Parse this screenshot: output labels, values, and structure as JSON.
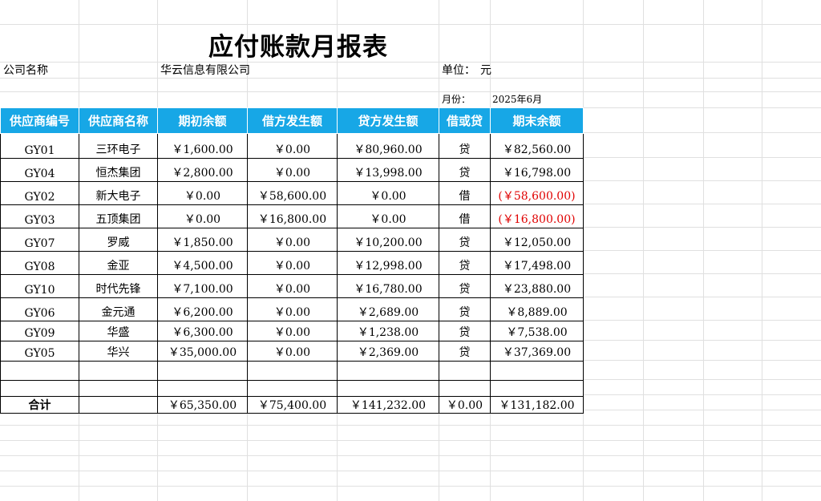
{
  "title": "应付账款月报表",
  "company": {
    "label": "公司名称",
    "value": "华云信息有限公司"
  },
  "unit": {
    "label": "单位：",
    "value": "元"
  },
  "month": {
    "label": "月份：",
    "value": "2025年6月"
  },
  "columns": [
    "供应商编号",
    "供应商名称",
    "期初余额",
    "借方发生额",
    "贷方发生额",
    "借或贷",
    "期末余额"
  ],
  "rows": [
    {
      "code": "GY01",
      "name": "三环电子",
      "opening": "￥1,600.00",
      "debit": "￥0.00",
      "credit": "￥80,960.00",
      "dc": "贷",
      "closing": "￥82,560.00",
      "negative": false
    },
    {
      "code": "GY04",
      "name": "恒杰集团",
      "opening": "￥2,800.00",
      "debit": "￥0.00",
      "credit": "￥13,998.00",
      "dc": "贷",
      "closing": "￥16,798.00",
      "negative": false
    },
    {
      "code": "GY02",
      "name": "新大电子",
      "opening": "￥0.00",
      "debit": "￥58,600.00",
      "credit": "￥0.00",
      "dc": "借",
      "closing": "(￥58,600.00)",
      "negative": true
    },
    {
      "code": "GY03",
      "name": "五顶集团",
      "opening": "￥0.00",
      "debit": "￥16,800.00",
      "credit": "￥0.00",
      "dc": "借",
      "closing": "(￥16,800.00)",
      "negative": true
    },
    {
      "code": "GY07",
      "name": "罗威",
      "opening": "￥1,850.00",
      "debit": "￥0.00",
      "credit": "￥10,200.00",
      "dc": "贷",
      "closing": "￥12,050.00",
      "negative": false
    },
    {
      "code": "GY08",
      "name": "金亚",
      "opening": "￥4,500.00",
      "debit": "￥0.00",
      "credit": "￥12,998.00",
      "dc": "贷",
      "closing": "￥17,498.00",
      "negative": false
    },
    {
      "code": "GY10",
      "name": "时代先锋",
      "opening": "￥7,100.00",
      "debit": "￥0.00",
      "credit": "￥16,780.00",
      "dc": "贷",
      "closing": "￥23,880.00",
      "negative": false
    },
    {
      "code": "GY06",
      "name": "金元通",
      "opening": "￥6,200.00",
      "debit": "￥0.00",
      "credit": "￥2,689.00",
      "dc": "贷",
      "closing": "￥8,889.00",
      "negative": false
    },
    {
      "code": "GY09",
      "name": "华盛",
      "opening": "￥6,300.00",
      "debit": "￥0.00",
      "credit": "￥1,238.00",
      "dc": "贷",
      "closing": "￥7,538.00",
      "negative": false
    },
    {
      "code": "GY05",
      "name": "华兴",
      "opening": "￥35,000.00",
      "debit": "￥0.00",
      "credit": "￥2,369.00",
      "dc": "贷",
      "closing": "￥37,369.00",
      "negative": false
    }
  ],
  "total": {
    "label": "合计",
    "opening": "￥65,350.00",
    "debit": "￥75,400.00",
    "credit": "￥141,232.00",
    "dc": "￥0.00",
    "closing": "￥131,182.00"
  },
  "colors": {
    "header_bg": "#17a7e6",
    "header_text": "#ffffff",
    "negative": "#e00000",
    "gridline": "#e0e0e0"
  }
}
